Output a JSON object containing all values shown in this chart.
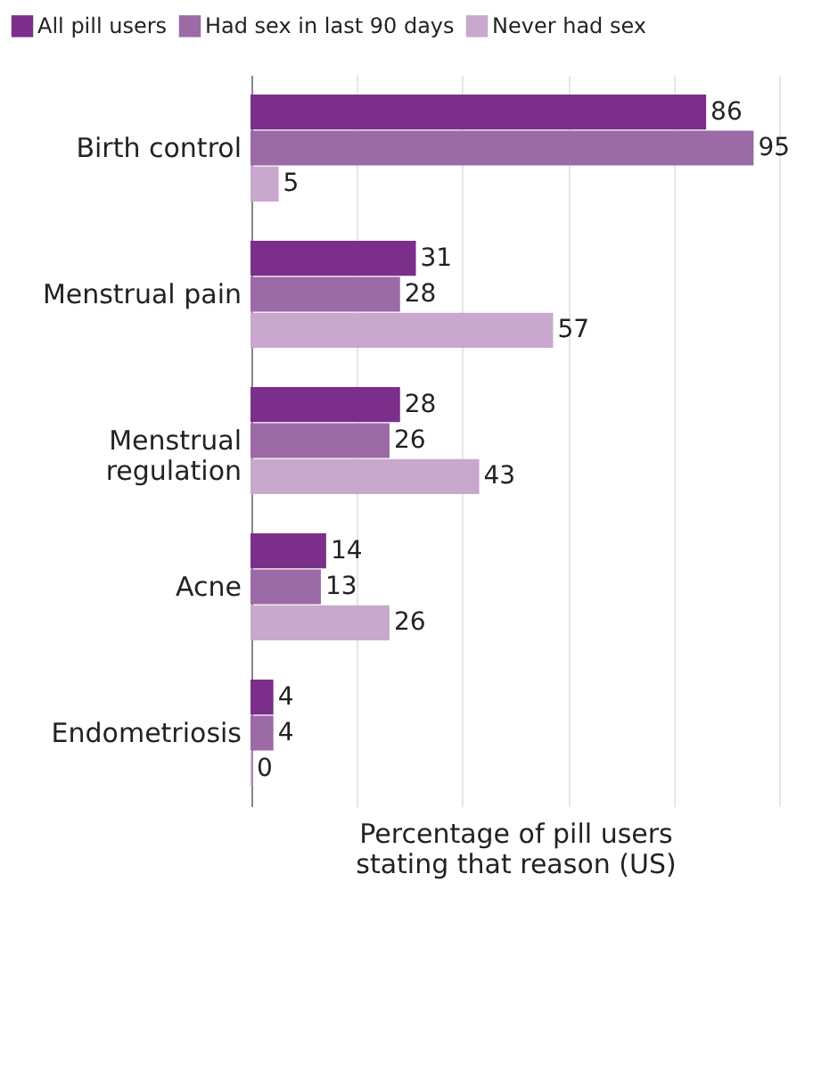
{
  "chart_data": {
    "type": "bar",
    "orientation": "horizontal",
    "categories": [
      "Birth control",
      "Menstrual pain",
      "Menstrual regulation",
      "Acne",
      "Endometriosis"
    ],
    "series": [
      {
        "name": "All pill users",
        "color": "#7b2e8a",
        "values": [
          86,
          31,
          28,
          14,
          4
        ]
      },
      {
        "name": "Had sex in last 90 days",
        "color": "#9c6aa7",
        "values": [
          95,
          28,
          26,
          13,
          4
        ]
      },
      {
        "name": "Never had sex",
        "color": "#c8a8cd",
        "values": [
          5,
          57,
          43,
          26,
          0
        ]
      }
    ],
    "xlabel": "Percentage of pill users stating that reason (US)",
    "xlim": [
      0,
      100
    ],
    "xticks": [
      {
        "value": 20,
        "label": null
      },
      {
        "value": 40,
        "label": null
      },
      {
        "value": 60,
        "label": null
      },
      {
        "value": 80,
        "label": null
      },
      {
        "value": 100,
        "label": null
      }
    ],
    "tick_labels": "y",
    "grid": "x",
    "data_labels": true,
    "legend": "top"
  }
}
